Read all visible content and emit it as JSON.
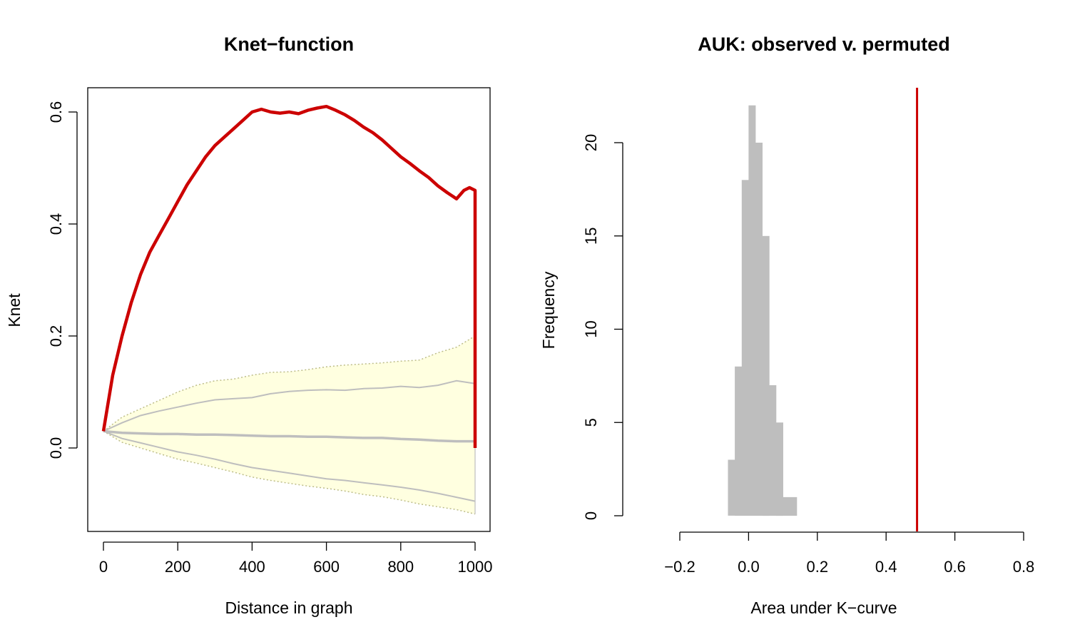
{
  "chart_data": [
    {
      "type": "line",
      "title": "Knet−function",
      "xlabel": "Distance in graph",
      "ylabel": "Knet",
      "xlim": [
        0,
        1000
      ],
      "ylim": [
        -0.12,
        0.6
      ],
      "xticks": [
        "0",
        "200",
        "400",
        "600",
        "800",
        "1000"
      ],
      "yticks": [
        "0.0",
        "0.2",
        "0.4",
        "0.6"
      ],
      "grid": false,
      "colors": {
        "observed": "#cc0000",
        "band_fill": "#ffffe0",
        "band_edge": "#bdbd8a",
        "permuted_lines": "#bebebe"
      },
      "series": [
        {
          "role": "observed",
          "x": [
            0,
            10,
            25,
            50,
            75,
            100,
            125,
            150,
            175,
            200,
            225,
            250,
            275,
            300,
            325,
            350,
            375,
            400,
            425,
            450,
            475,
            500,
            525,
            550,
            575,
            600,
            625,
            650,
            675,
            700,
            725,
            750,
            775,
            800,
            825,
            850,
            875,
            900,
            925,
            950,
            970,
            985,
            1000,
            1000
          ],
          "y": [
            0.03,
            0.07,
            0.13,
            0.2,
            0.26,
            0.31,
            0.35,
            0.38,
            0.41,
            0.44,
            0.47,
            0.495,
            0.52,
            0.54,
            0.555,
            0.57,
            0.585,
            0.6,
            0.605,
            0.6,
            0.598,
            0.6,
            0.597,
            0.603,
            0.607,
            0.61,
            0.603,
            0.595,
            0.585,
            0.573,
            0.563,
            0.55,
            0.535,
            0.52,
            0.508,
            0.495,
            0.483,
            0.468,
            0.456,
            0.445,
            0.46,
            0.465,
            0.46,
            0.0
          ]
        },
        {
          "role": "band_upper",
          "x": [
            0,
            50,
            100,
            150,
            200,
            250,
            300,
            350,
            400,
            450,
            500,
            550,
            600,
            650,
            700,
            750,
            800,
            850,
            900,
            950,
            1000
          ],
          "y": [
            0.03,
            0.055,
            0.07,
            0.085,
            0.1,
            0.112,
            0.12,
            0.123,
            0.13,
            0.135,
            0.136,
            0.14,
            0.145,
            0.148,
            0.15,
            0.152,
            0.155,
            0.157,
            0.17,
            0.18,
            0.2
          ]
        },
        {
          "role": "band_lower",
          "x": [
            0,
            50,
            100,
            150,
            200,
            250,
            300,
            350,
            400,
            450,
            500,
            550,
            600,
            650,
            700,
            750,
            800,
            850,
            900,
            950,
            1000
          ],
          "y": [
            0.03,
            0.01,
            0.0,
            -0.01,
            -0.02,
            -0.027,
            -0.035,
            -0.043,
            -0.052,
            -0.058,
            -0.063,
            -0.068,
            -0.072,
            -0.077,
            -0.083,
            -0.087,
            -0.093,
            -0.1,
            -0.105,
            -0.11,
            -0.118
          ]
        },
        {
          "role": "permuted_upper",
          "x": [
            0,
            50,
            100,
            150,
            200,
            250,
            300,
            350,
            400,
            450,
            500,
            550,
            600,
            650,
            700,
            750,
            800,
            850,
            900,
            950,
            1000
          ],
          "y": [
            0.03,
            0.045,
            0.058,
            0.066,
            0.073,
            0.08,
            0.086,
            0.088,
            0.09,
            0.097,
            0.101,
            0.103,
            0.104,
            0.103,
            0.106,
            0.107,
            0.11,
            0.108,
            0.112,
            0.12,
            0.115
          ]
        },
        {
          "role": "permuted_median",
          "x": [
            0,
            50,
            100,
            150,
            200,
            250,
            300,
            350,
            400,
            450,
            500,
            550,
            600,
            650,
            700,
            750,
            800,
            850,
            900,
            950,
            1000
          ],
          "y": [
            0.03,
            0.027,
            0.026,
            0.025,
            0.025,
            0.024,
            0.024,
            0.023,
            0.022,
            0.021,
            0.021,
            0.02,
            0.02,
            0.019,
            0.018,
            0.018,
            0.016,
            0.015,
            0.013,
            0.012,
            0.012
          ]
        },
        {
          "role": "permuted_lower",
          "x": [
            0,
            50,
            100,
            150,
            200,
            250,
            300,
            350,
            400,
            450,
            500,
            550,
            600,
            650,
            700,
            750,
            800,
            850,
            900,
            950,
            1000
          ],
          "y": [
            0.03,
            0.017,
            0.009,
            0.001,
            -0.007,
            -0.013,
            -0.02,
            -0.028,
            -0.035,
            -0.04,
            -0.045,
            -0.05,
            -0.055,
            -0.058,
            -0.062,
            -0.066,
            -0.07,
            -0.075,
            -0.081,
            -0.088,
            -0.095
          ]
        }
      ]
    },
    {
      "type": "bar",
      "title": "AUK: observed v. permuted",
      "xlabel": "Area under K−curve",
      "ylabel": "Frequency",
      "xlim": [
        -0.2,
        0.8
      ],
      "ylim": [
        0,
        22
      ],
      "xticks": [
        "−0.2",
        "0.0",
        "0.2",
        "0.4",
        "0.6",
        "0.8"
      ],
      "yticks": [
        "0",
        "5",
        "10",
        "15",
        "20"
      ],
      "grid": false,
      "colors": {
        "bars": "#bebebe",
        "observed_line": "#cc0000"
      },
      "bins": [
        {
          "from": -0.06,
          "to": -0.04,
          "count": 3
        },
        {
          "from": -0.04,
          "to": -0.02,
          "count": 8
        },
        {
          "from": -0.02,
          "to": 0.0,
          "count": 18
        },
        {
          "from": 0.0,
          "to": 0.02,
          "count": 22
        },
        {
          "from": 0.02,
          "to": 0.04,
          "count": 20
        },
        {
          "from": 0.04,
          "to": 0.06,
          "count": 15
        },
        {
          "from": 0.06,
          "to": 0.08,
          "count": 7
        },
        {
          "from": 0.08,
          "to": 0.1,
          "count": 5
        },
        {
          "from": 0.1,
          "to": 0.14,
          "count": 1
        }
      ],
      "observed_value": 0.49
    }
  ]
}
